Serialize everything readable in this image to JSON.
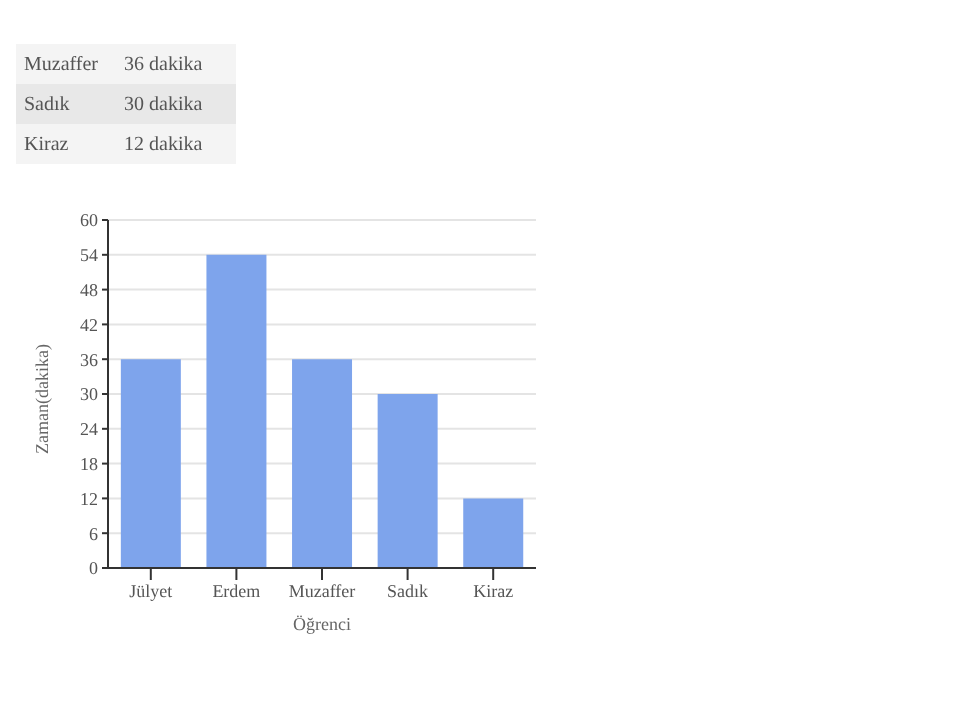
{
  "chart_data": {
    "type": "bar",
    "xlabel": "Öğrenci",
    "ylabel": "Zaman(dakika)",
    "categories": [
      "Jülyet",
      "Erdem",
      "Muzaffer",
      "Sadık",
      "Kiraz"
    ],
    "values": [
      36,
      54,
      36,
      30,
      12
    ],
    "annotations": [
      "Muzaffer",
      "36 dakika",
      "Sadık",
      "30 dakika",
      "Kiraz",
      "12 dakika"
    ],
    "color": "#7ea4ec",
    "ylim": [
      0,
      60
    ],
    "yticks": [
      0,
      6,
      12,
      18,
      24,
      30,
      36,
      42,
      48,
      54,
      60
    ],
    "grid": "y"
  }
}
